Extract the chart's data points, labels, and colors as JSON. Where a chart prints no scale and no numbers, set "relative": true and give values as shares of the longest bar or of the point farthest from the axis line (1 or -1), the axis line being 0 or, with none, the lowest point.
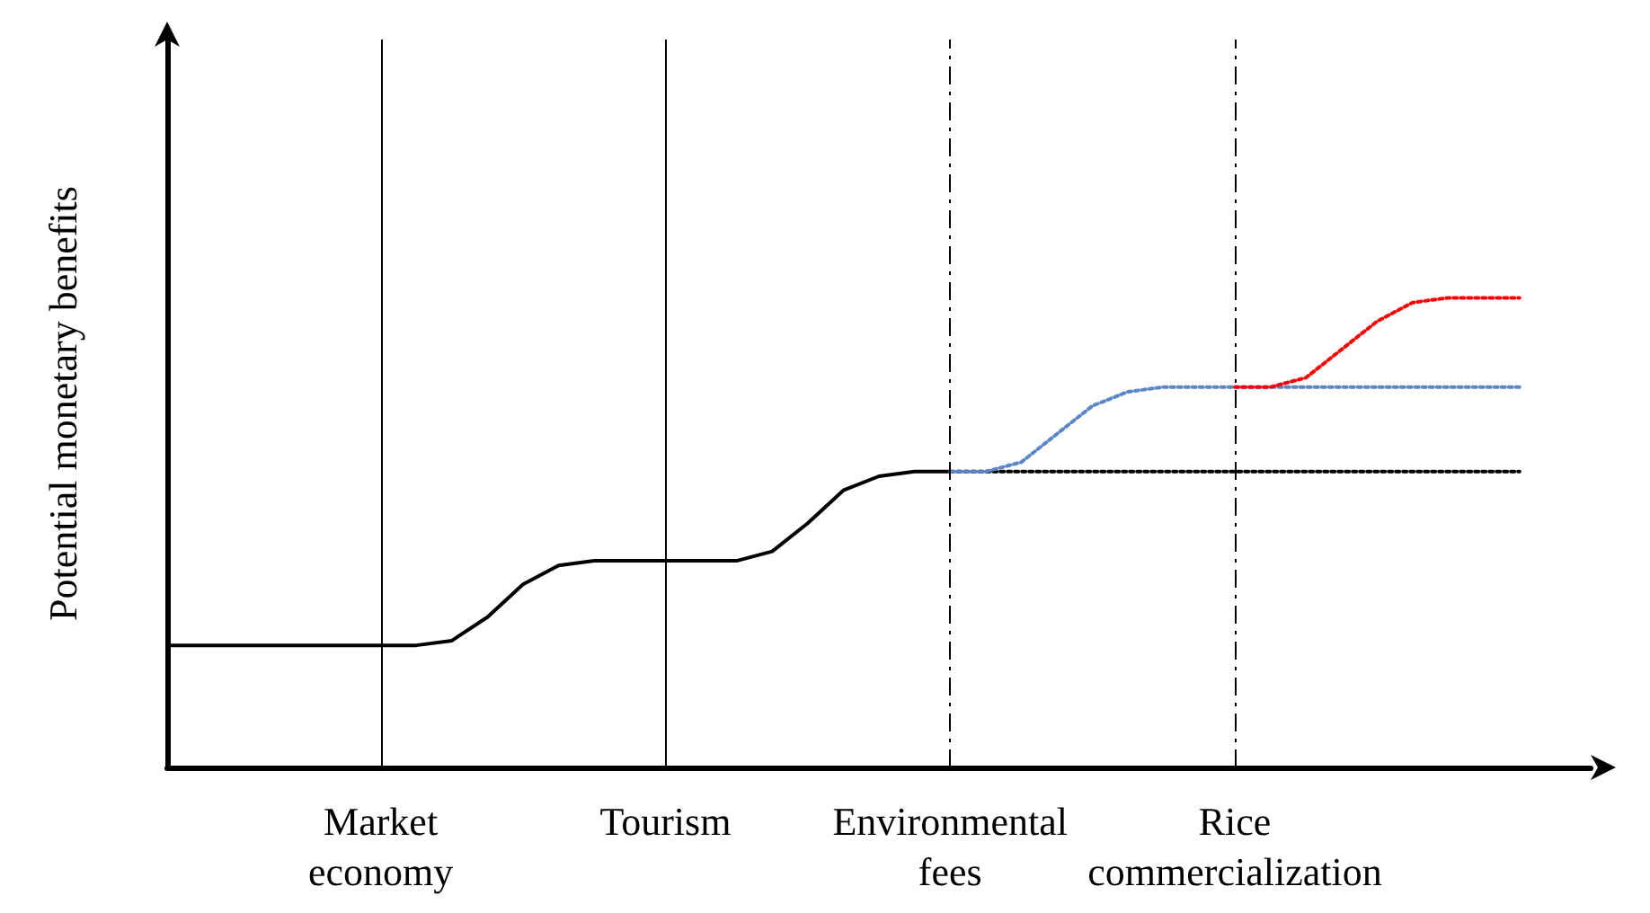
{
  "chart_data": {
    "type": "line",
    "relative": true,
    "ylabel": "Potential monetary benefits",
    "tick_labels": "x",
    "grid": false,
    "marker": "none",
    "categories": [
      null,
      null,
      null,
      null,
      null,
      null,
      "Market economy",
      null,
      null,
      null,
      null,
      null,
      null,
      null,
      "Tourism",
      null,
      null,
      null,
      null,
      null,
      null,
      null,
      "Environmental fees",
      null,
      null,
      null,
      null,
      null,
      null,
      null,
      "Rice commercialization",
      null,
      null,
      null,
      null,
      null,
      null,
      null,
      null,
      null,
      null
    ],
    "series": [
      {
        "color": "#000000",
        "line_style": "solid",
        "values": [
          0.26,
          0.26,
          0.26,
          0.26,
          0.26,
          0.26,
          0.26,
          0.26,
          0.27,
          0.32,
          0.39,
          0.43,
          0.44,
          0.44,
          0.44,
          0.44,
          0.44,
          0.46,
          0.52,
          0.59,
          0.62,
          0.63,
          0.63,
          null,
          null,
          null,
          null,
          null,
          null,
          null,
          null,
          null,
          null,
          null,
          null,
          null,
          null,
          null,
          null,
          null,
          null
        ]
      },
      {
        "color": "#000000",
        "line_style": "dotted",
        "values": [
          null,
          null,
          null,
          null,
          null,
          null,
          null,
          null,
          null,
          null,
          null,
          null,
          null,
          null,
          null,
          null,
          null,
          null,
          null,
          null,
          null,
          null,
          0.63,
          0.63,
          0.63,
          0.63,
          0.63,
          0.63,
          0.63,
          0.63,
          0.63,
          0.63,
          0.63,
          0.63,
          0.63,
          0.63,
          0.63,
          0.63,
          0.63,
          null,
          null
        ]
      },
      {
        "color": "#5b86c5",
        "line_style": "dotted",
        "values": [
          null,
          null,
          null,
          null,
          null,
          null,
          null,
          null,
          null,
          null,
          null,
          null,
          null,
          null,
          null,
          null,
          null,
          null,
          null,
          null,
          null,
          null,
          0.63,
          0.63,
          0.65,
          0.71,
          0.77,
          0.8,
          0.81,
          0.81,
          0.81,
          0.81,
          0.81,
          0.81,
          0.81,
          0.81,
          0.81,
          0.81,
          0.81,
          null,
          null
        ]
      },
      {
        "color": "#ff0000",
        "line_style": "dotted",
        "values": [
          null,
          null,
          null,
          null,
          null,
          null,
          null,
          null,
          null,
          null,
          null,
          null,
          null,
          null,
          null,
          null,
          null,
          null,
          null,
          null,
          null,
          null,
          null,
          null,
          null,
          null,
          null,
          null,
          null,
          null,
          0.81,
          0.81,
          0.83,
          0.89,
          0.95,
          0.99,
          1,
          1,
          1,
          null,
          null
        ]
      }
    ],
    "ref_lines": [
      {
        "axis": "x",
        "value": "Market economy",
        "line_style": "solid",
        "color": "#000000"
      },
      {
        "axis": "x",
        "value": "Tourism",
        "line_style": "solid",
        "color": "#000000"
      },
      {
        "axis": "x",
        "value": "Environmental fees",
        "line_style": "dashed",
        "color": "#000000"
      },
      {
        "axis": "x",
        "value": "Rice commercialization",
        "line_style": "dashed",
        "color": "#000000"
      }
    ]
  }
}
